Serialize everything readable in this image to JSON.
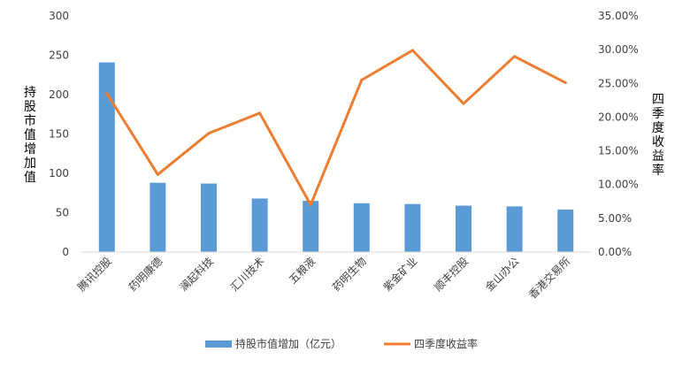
{
  "chart_data": {
    "type": "bar",
    "categories": [
      "腾讯控股",
      "药明康德",
      "澜起科技",
      "汇川技术",
      "五粮液",
      "药明生物",
      "紫金矿业",
      "顺丰控股",
      "金山办公",
      "香港交易所"
    ],
    "series": [
      {
        "name": "持股市值增加（亿元）",
        "type": "bar",
        "axis": "left",
        "color": "#5B9BD5",
        "values": [
          241,
          88,
          87,
          68,
          65,
          62,
          61,
          59,
          58,
          54
        ]
      },
      {
        "name": "四季度收益率",
        "type": "line",
        "axis": "right",
        "color": "#ED7D31",
        "values": [
          0.235,
          0.115,
          0.176,
          0.206,
          0.07,
          0.255,
          0.299,
          0.22,
          0.29,
          0.251
        ]
      }
    ],
    "ylabel_left": "持股市值增加值",
    "ylabel_right": "四季度收益率",
    "ylim_left": [
      0,
      300
    ],
    "ylim_right": [
      0,
      0.35
    ],
    "yticks_left": [
      "0",
      "50",
      "100",
      "150",
      "200",
      "250",
      "300"
    ],
    "yticks_right": [
      "0.00%",
      "5.00%",
      "10.00%",
      "15.00%",
      "20.00%",
      "25.00%",
      "30.00%",
      "35.00%"
    ],
    "grid": false,
    "legend": "bottom",
    "legend_labels": [
      "持股市值增加（亿元）",
      "四季度收益率"
    ]
  }
}
